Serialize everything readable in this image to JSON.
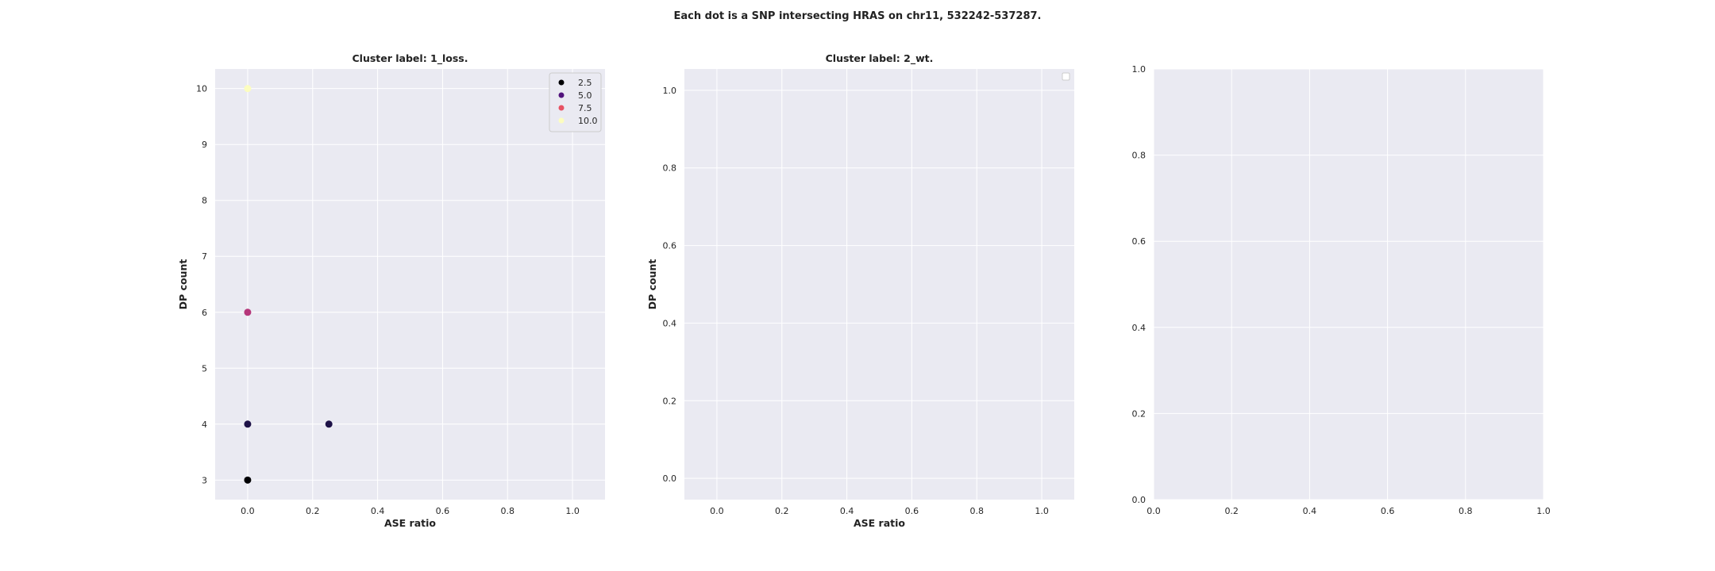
{
  "figure": {
    "suptitle": "Each dot is a SNP intersecting HRAS on chr11, 532242-537287.",
    "background": "#ffffff",
    "panel_bg": "#eaeaf2",
    "grid_color": "#ffffff",
    "text_color": "#262626"
  },
  "chart_data": [
    {
      "type": "scatter",
      "title": "Cluster label: 1_loss.",
      "xlabel": "ASE ratio",
      "ylabel": "DP count",
      "xlim": [
        -0.1,
        1.1
      ],
      "ylim": [
        2.65,
        10.35
      ],
      "xticks": [
        0.0,
        0.2,
        0.4,
        0.6,
        0.8,
        1.0
      ],
      "xtick_labels": [
        "0.0",
        "0.2",
        "0.4",
        "0.6",
        "0.8",
        "1.0"
      ],
      "yticks": [
        3,
        4,
        5,
        6,
        7,
        8,
        9,
        10
      ],
      "ytick_labels": [
        "3",
        "4",
        "5",
        "6",
        "7",
        "8",
        "9",
        "10"
      ],
      "grid": true,
      "points": [
        {
          "x": 0.0,
          "y": 3,
          "color": "#000004"
        },
        {
          "x": 0.0,
          "y": 4,
          "color": "#1d1147"
        },
        {
          "x": 0.25,
          "y": 4,
          "color": "#1d1147"
        },
        {
          "x": 0.0,
          "y": 6,
          "color": "#b5367a"
        },
        {
          "x": 0.0,
          "y": 10,
          "color": "#fcfdbf"
        }
      ],
      "legend": {
        "position": "upper right",
        "entries": [
          {
            "label": "2.5",
            "color": "#000004"
          },
          {
            "label": "5.0",
            "color": "#51127c"
          },
          {
            "label": "7.5",
            "color": "#e75263"
          },
          {
            "label": "10.0",
            "color": "#fcfdbf"
          }
        ]
      }
    },
    {
      "type": "scatter",
      "title": "Cluster label: 2_wt.",
      "xlabel": "ASE ratio",
      "ylabel": "DP count",
      "xlim": [
        -0.1,
        1.1
      ],
      "ylim": [
        -0.055,
        1.055
      ],
      "xticks": [
        0.0,
        0.2,
        0.4,
        0.6,
        0.8,
        1.0
      ],
      "xtick_labels": [
        "0.0",
        "0.2",
        "0.4",
        "0.6",
        "0.8",
        "1.0"
      ],
      "yticks": [
        0.0,
        0.2,
        0.4,
        0.6,
        0.8,
        1.0
      ],
      "ytick_labels": [
        "0.0",
        "0.2",
        "0.4",
        "0.6",
        "0.8",
        "1.0"
      ],
      "grid": true,
      "points": [],
      "legend": {
        "position": "upper right",
        "entries": []
      }
    },
    {
      "type": "scatter",
      "title": "",
      "xlabel": "",
      "ylabel": "",
      "xlim": [
        0,
        1
      ],
      "ylim": [
        0,
        1
      ],
      "xticks": [
        0.0,
        0.2,
        0.4,
        0.6,
        0.8,
        1.0
      ],
      "xtick_labels": [
        "0.0",
        "0.2",
        "0.4",
        "0.6",
        "0.8",
        "1.0"
      ],
      "yticks": [
        0.0,
        0.2,
        0.4,
        0.6,
        0.8,
        1.0
      ],
      "ytick_labels": [
        "0.0",
        "0.2",
        "0.4",
        "0.6",
        "0.8",
        "1.0"
      ],
      "grid": true,
      "points": []
    }
  ]
}
